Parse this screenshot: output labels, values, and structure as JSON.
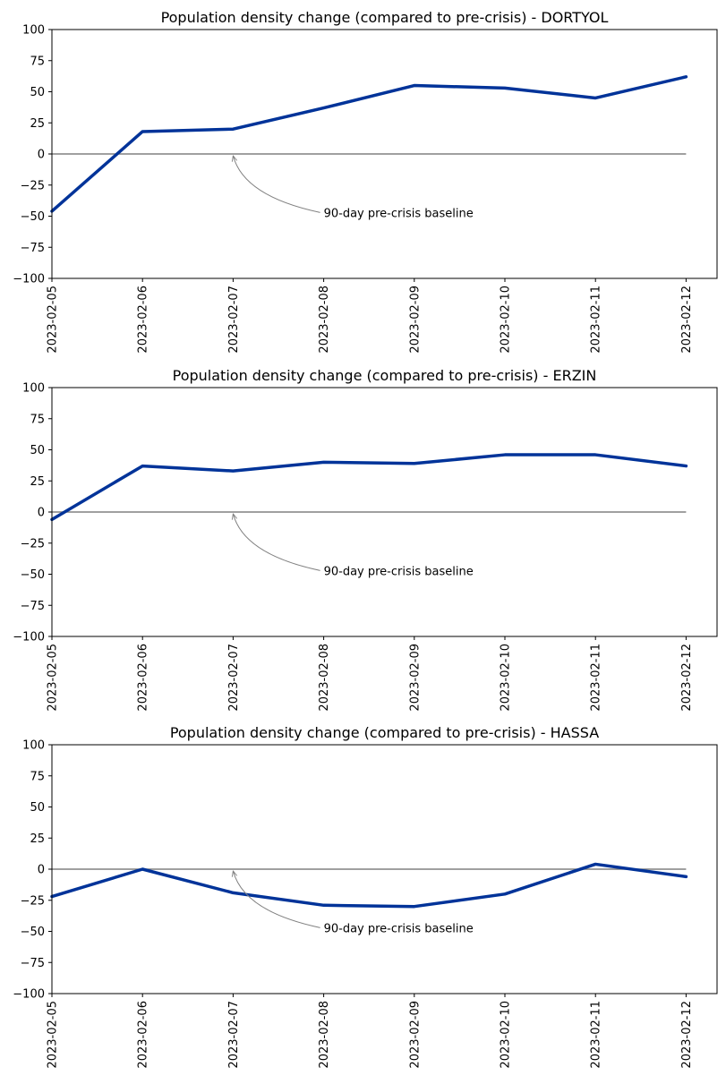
{
  "chart_data": [
    {
      "type": "line",
      "title": "Population density change (compared to pre-crisis) - DORTYOL",
      "x": [
        "2023-02-05",
        "2023-02-06",
        "2023-02-07",
        "2023-02-08",
        "2023-02-09",
        "2023-02-10",
        "2023-02-11",
        "2023-02-12"
      ],
      "y": [
        -46,
        18,
        20,
        37,
        55,
        53,
        45,
        62
      ],
      "ylim": [
        -100,
        100
      ],
      "yticks": [
        100,
        75,
        50,
        25,
        0,
        -25,
        -50,
        -75,
        -100
      ],
      "baseline": 0,
      "annotation": {
        "text": "90-day pre-crisis baseline",
        "x": "2023-02-08",
        "y": -47,
        "arrow_to_x": "2023-02-07",
        "arrow_to_y": 0
      },
      "line_color": "#003399",
      "baseline_color": "#808080",
      "grid": false
    },
    {
      "type": "line",
      "title": "Population density change (compared to pre-crisis) - ERZIN",
      "x": [
        "2023-02-05",
        "2023-02-06",
        "2023-02-07",
        "2023-02-08",
        "2023-02-09",
        "2023-02-10",
        "2023-02-11",
        "2023-02-12"
      ],
      "y": [
        -6,
        37,
        33,
        40,
        39,
        46,
        46,
        37
      ],
      "ylim": [
        -100,
        100
      ],
      "yticks": [
        100,
        75,
        50,
        25,
        0,
        -25,
        -50,
        -75,
        -100
      ],
      "baseline": 0,
      "annotation": {
        "text": "90-day pre-crisis baseline",
        "x": "2023-02-08",
        "y": -47,
        "arrow_to_x": "2023-02-07",
        "arrow_to_y": 0
      },
      "line_color": "#003399",
      "baseline_color": "#808080",
      "grid": false
    },
    {
      "type": "line",
      "title": "Population density change (compared to pre-crisis) - HASSA",
      "x": [
        "2023-02-05",
        "2023-02-06",
        "2023-02-07",
        "2023-02-08",
        "2023-02-09",
        "2023-02-10",
        "2023-02-11",
        "2023-02-12"
      ],
      "y": [
        -22,
        0,
        -19,
        -29,
        -30,
        -20,
        4,
        -6
      ],
      "ylim": [
        -100,
        100
      ],
      "yticks": [
        100,
        75,
        50,
        25,
        0,
        -25,
        -50,
        -75,
        -100
      ],
      "baseline": 0,
      "annotation": {
        "text": "90-day pre-crisis baseline",
        "x": "2023-02-08",
        "y": -47,
        "arrow_to_x": "2023-02-07",
        "arrow_to_y": 0
      },
      "line_color": "#003399",
      "baseline_color": "#808080",
      "grid": false
    }
  ]
}
